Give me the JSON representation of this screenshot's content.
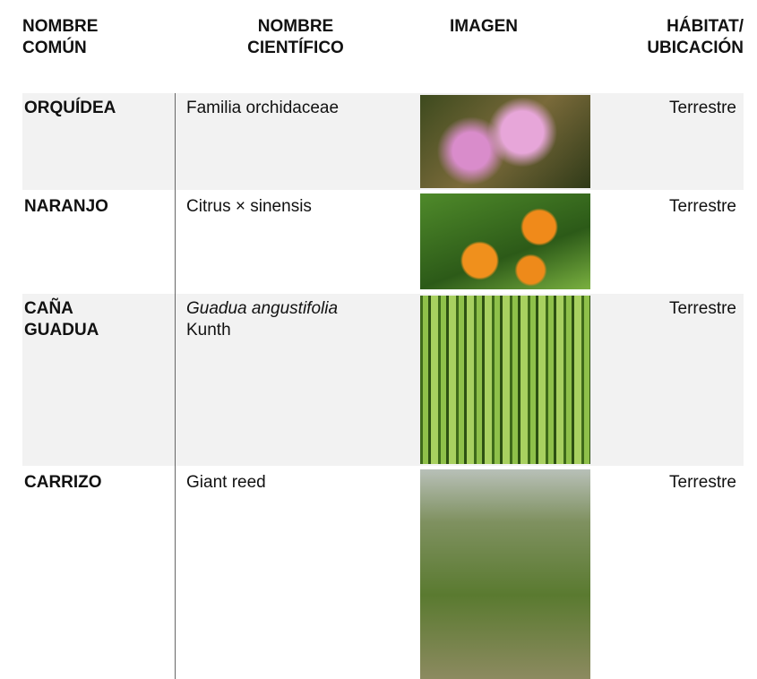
{
  "table": {
    "header": [
      [
        "NOMBRE",
        "COMÚN"
      ],
      [
        "NOMBRE",
        "CIENTÍFICO"
      ],
      [
        "IMAGEN"
      ],
      [
        "HÁBITAT/",
        "UBICACIÓN"
      ]
    ],
    "rows": [
      {
        "common": [
          "ORQUÍDEA"
        ],
        "scientific": {
          "plain": "Familia orchidaceae"
        },
        "habitat": "Terrestre"
      },
      {
        "common": [
          "NARANJO"
        ],
        "scientific": {
          "plain": "Citrus × sinensis"
        },
        "habitat": "Terrestre"
      },
      {
        "common": [
          "CAÑA",
          "GUADUA"
        ],
        "scientific": {
          "italic": "Guadua angustifolia",
          "plain": "Kunth"
        },
        "habitat": "Terrestre"
      },
      {
        "common": [
          "CARRIZO"
        ],
        "scientific": {
          "plain": "Giant reed"
        },
        "habitat": "Terrestre"
      }
    ]
  }
}
